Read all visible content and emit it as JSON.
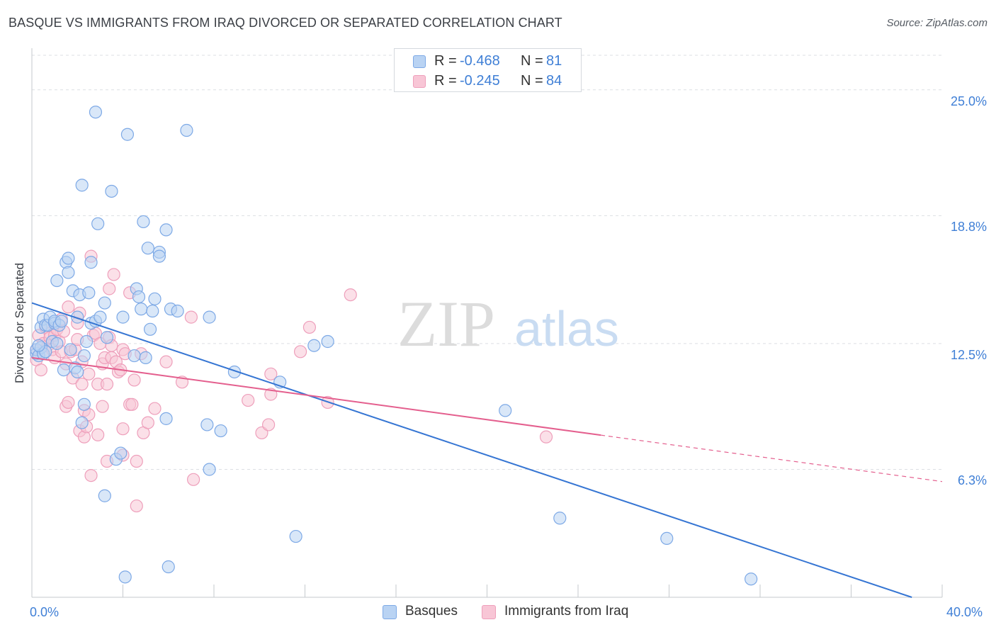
{
  "title": "BASQUE VS IMMIGRANTS FROM IRAQ DIVORCED OR SEPARATED CORRELATION CHART",
  "source": "Source: ZipAtlas.com",
  "watermark": {
    "zip": "ZIP",
    "atlas": "atlas"
  },
  "legend": {
    "rows": [
      {
        "r_label": "R =",
        "r_value": "-0.468",
        "n_label": "N =",
        "n_value": "81"
      },
      {
        "r_label": "R =",
        "r_value": "-0.245",
        "n_label": "N =",
        "n_value": "84"
      }
    ]
  },
  "bottom_legend": {
    "basques": "Basques",
    "iraq": "Immigrants from Iraq"
  },
  "colors": {
    "blue_fill": "#b9d3f3",
    "blue_stroke": "#7da9e6",
    "blue_line": "#3575d3",
    "pink_fill": "#f8c6d6",
    "pink_stroke": "#ee9fbb",
    "pink_line": "#e45f8e",
    "axis_text": "#3f7fd6",
    "grid": "#dcdfe3"
  },
  "chart_data": {
    "type": "scatter",
    "title": "BASQUE VS IMMIGRANTS FROM IRAQ DIVORCED OR SEPARATED CORRELATION CHART",
    "xlabel": "",
    "ylabel": "Divorced or Separated",
    "xlim": [
      0,
      40
    ],
    "ylim": [
      0,
      26.7
    ],
    "x_tick_labels": [
      "0.0%",
      "40.0%"
    ],
    "y_ticks": [
      6.3,
      12.5,
      18.8,
      25.0
    ],
    "y_tick_labels": [
      "6.3%",
      "12.5%",
      "18.8%",
      "25.0%"
    ],
    "grid": true,
    "legend_position": "top-center",
    "series": [
      {
        "name": "Basques",
        "r": -0.468,
        "n": 81,
        "trend": {
          "x0": 0,
          "y0": 14.5,
          "x1": 40,
          "y1": -0.5,
          "dashed_from": null
        },
        "points": [
          [
            0.2,
            12.0
          ],
          [
            0.2,
            12.2
          ],
          [
            0.3,
            11.9
          ],
          [
            0.4,
            12.3
          ],
          [
            0.4,
            13.3
          ],
          [
            0.5,
            12.0
          ],
          [
            0.5,
            13.7
          ],
          [
            0.6,
            12.1
          ],
          [
            0.6,
            13.4
          ],
          [
            0.7,
            13.4
          ],
          [
            0.8,
            13.8
          ],
          [
            0.9,
            12.6
          ],
          [
            1.0,
            13.5
          ],
          [
            1.0,
            13.6
          ],
          [
            1.1,
            15.6
          ],
          [
            1.2,
            13.4
          ],
          [
            1.3,
            13.6
          ],
          [
            1.4,
            11.2
          ],
          [
            1.5,
            16.5
          ],
          [
            1.6,
            16.0
          ],
          [
            1.6,
            16.7
          ],
          [
            1.7,
            12.2
          ],
          [
            1.8,
            15.1
          ],
          [
            1.9,
            11.3
          ],
          [
            2.0,
            11.1
          ],
          [
            2.0,
            13.8
          ],
          [
            2.1,
            14.9
          ],
          [
            2.2,
            20.3
          ],
          [
            2.2,
            8.6
          ],
          [
            2.3,
            9.5
          ],
          [
            2.3,
            11.9
          ],
          [
            2.4,
            12.6
          ],
          [
            2.5,
            15.0
          ],
          [
            2.6,
            16.5
          ],
          [
            2.6,
            13.5
          ],
          [
            2.8,
            13.6
          ],
          [
            2.8,
            23.9
          ],
          [
            2.9,
            18.4
          ],
          [
            3.0,
            13.8
          ],
          [
            3.2,
            14.5
          ],
          [
            3.2,
            5.0
          ],
          [
            3.3,
            12.8
          ],
          [
            3.5,
            20.0
          ],
          [
            3.7,
            6.8
          ],
          [
            3.9,
            7.1
          ],
          [
            4.0,
            13.8
          ],
          [
            4.1,
            1.0
          ],
          [
            4.2,
            22.8
          ],
          [
            4.5,
            11.9
          ],
          [
            4.6,
            15.2
          ],
          [
            4.7,
            14.8
          ],
          [
            4.8,
            14.2
          ],
          [
            4.9,
            18.5
          ],
          [
            5.0,
            11.8
          ],
          [
            5.1,
            17.2
          ],
          [
            5.2,
            13.2
          ],
          [
            5.3,
            14.1
          ],
          [
            5.4,
            14.7
          ],
          [
            5.6,
            17.0
          ],
          [
            5.6,
            16.8
          ],
          [
            5.9,
            8.8
          ],
          [
            5.9,
            18.1
          ],
          [
            6.0,
            1.5
          ],
          [
            6.1,
            14.2
          ],
          [
            6.4,
            14.1
          ],
          [
            6.8,
            23.0
          ],
          [
            7.7,
            8.5
          ],
          [
            7.8,
            6.3
          ],
          [
            7.8,
            13.8
          ],
          [
            8.3,
            8.2
          ],
          [
            8.9,
            11.1
          ],
          [
            10.9,
            10.6
          ],
          [
            11.6,
            3.0
          ],
          [
            12.4,
            12.4
          ],
          [
            13.0,
            12.6
          ],
          [
            20.8,
            9.2
          ],
          [
            23.2,
            3.9
          ],
          [
            27.9,
            2.9
          ],
          [
            31.6,
            0.9
          ],
          [
            0.3,
            12.4
          ],
          [
            1.1,
            12.5
          ]
        ]
      },
      {
        "name": "Immigrants from Iraq",
        "r": -0.245,
        "n": 84,
        "trend": {
          "x0": 0,
          "y0": 11.8,
          "x1": 40,
          "y1": 5.7,
          "dashed_from": 25.0
        },
        "points": [
          [
            0.2,
            12.2
          ],
          [
            0.2,
            11.7
          ],
          [
            0.3,
            12.9
          ],
          [
            0.4,
            11.2
          ],
          [
            0.5,
            12.0
          ],
          [
            0.5,
            12.5
          ],
          [
            0.6,
            13.3
          ],
          [
            0.7,
            12.4
          ],
          [
            0.8,
            13.0
          ],
          [
            0.8,
            12.8
          ],
          [
            0.9,
            12.2
          ],
          [
            1.0,
            12.9
          ],
          [
            1.0,
            11.8
          ],
          [
            1.1,
            13.2
          ],
          [
            1.2,
            12.6
          ],
          [
            1.3,
            13.7
          ],
          [
            1.3,
            12.1
          ],
          [
            1.4,
            13.1
          ],
          [
            1.5,
            11.5
          ],
          [
            1.5,
            9.4
          ],
          [
            1.6,
            9.6
          ],
          [
            1.6,
            14.3
          ],
          [
            1.7,
            12.1
          ],
          [
            1.8,
            10.8
          ],
          [
            1.9,
            12.2
          ],
          [
            2.0,
            13.5
          ],
          [
            2.0,
            12.7
          ],
          [
            2.1,
            14.0
          ],
          [
            2.1,
            8.2
          ],
          [
            2.2,
            10.5
          ],
          [
            2.2,
            11.6
          ],
          [
            2.3,
            7.9
          ],
          [
            2.3,
            9.2
          ],
          [
            2.4,
            8.4
          ],
          [
            2.5,
            11.0
          ],
          [
            2.5,
            9.0
          ],
          [
            2.6,
            6.0
          ],
          [
            2.6,
            16.8
          ],
          [
            2.7,
            12.9
          ],
          [
            2.8,
            13.0
          ],
          [
            2.9,
            8.0
          ],
          [
            2.9,
            10.5
          ],
          [
            3.0,
            12.5
          ],
          [
            3.1,
            11.5
          ],
          [
            3.1,
            9.4
          ],
          [
            3.2,
            11.8
          ],
          [
            3.3,
            6.7
          ],
          [
            3.3,
            10.5
          ],
          [
            3.4,
            12.8
          ],
          [
            3.4,
            15.2
          ],
          [
            3.5,
            12.4
          ],
          [
            3.5,
            11.8
          ],
          [
            3.6,
            15.9
          ],
          [
            3.7,
            11.6
          ],
          [
            3.8,
            11.1
          ],
          [
            3.9,
            11.2
          ],
          [
            4.0,
            8.3
          ],
          [
            4.0,
            12.2
          ],
          [
            4.0,
            7.0
          ],
          [
            4.1,
            12.0
          ],
          [
            4.3,
            15.0
          ],
          [
            4.3,
            9.5
          ],
          [
            4.4,
            9.5
          ],
          [
            4.5,
            10.7
          ],
          [
            4.6,
            6.7
          ],
          [
            4.6,
            4.5
          ],
          [
            4.8,
            12.0
          ],
          [
            4.9,
            8.1
          ],
          [
            5.1,
            8.6
          ],
          [
            5.4,
            9.3
          ],
          [
            5.9,
            11.6
          ],
          [
            6.6,
            10.6
          ],
          [
            7.0,
            13.8
          ],
          [
            7.1,
            5.8
          ],
          [
            9.5,
            9.7
          ],
          [
            10.1,
            8.1
          ],
          [
            10.4,
            8.5
          ],
          [
            10.5,
            11.0
          ],
          [
            10.5,
            10.0
          ],
          [
            11.8,
            12.1
          ],
          [
            12.2,
            13.3
          ],
          [
            13.0,
            9.6
          ],
          [
            14.0,
            14.9
          ],
          [
            22.6,
            7.9
          ]
        ]
      }
    ]
  }
}
